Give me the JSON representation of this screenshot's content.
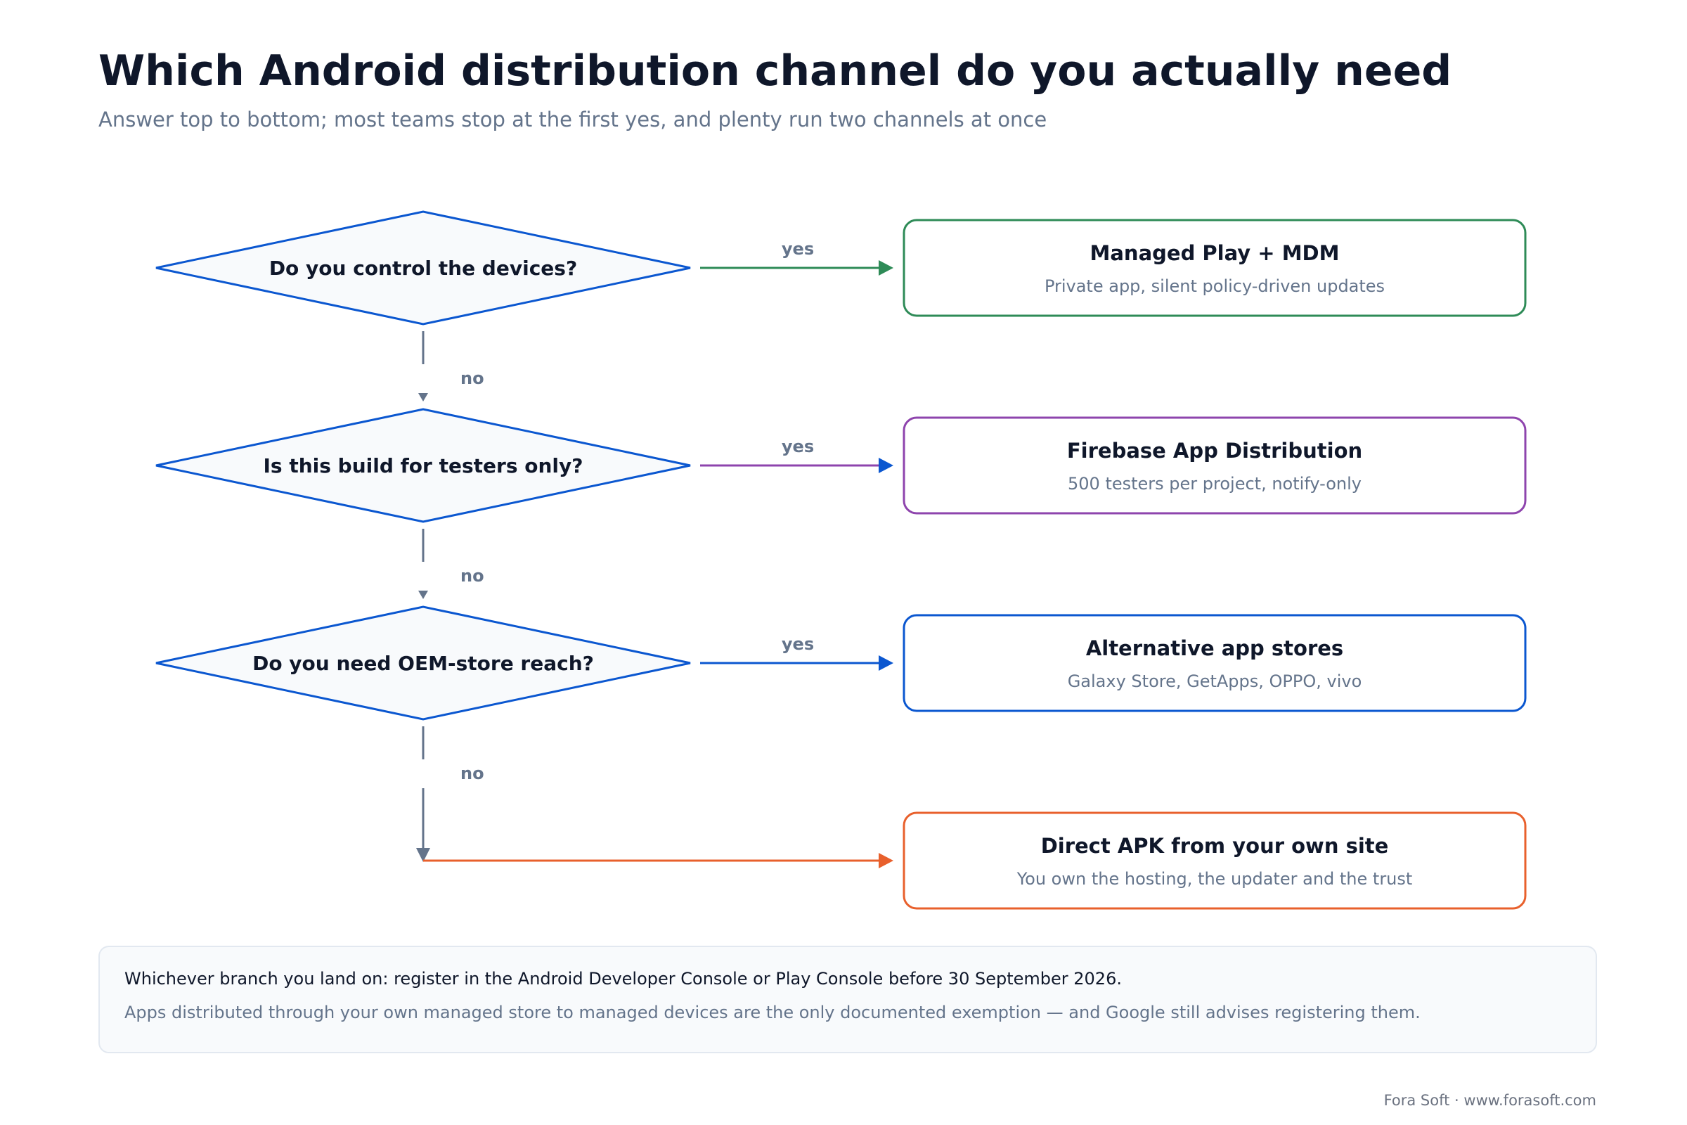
{
  "header": {
    "title": "Which Android distribution channel do you actually need",
    "subtitle": "Answer top to bottom; most teams stop at the first yes, and plenty run two channels at once"
  },
  "questions": [
    {
      "text": "Do you control the devices?",
      "yes_label": "yes",
      "no_label": "no"
    },
    {
      "text": "Is this build for testers only?",
      "yes_label": "yes",
      "no_label": "no"
    },
    {
      "text": "Do you need OEM-store reach?",
      "yes_label": "yes",
      "no_label": "no"
    }
  ],
  "outcomes": [
    {
      "title": "Managed Play + MDM",
      "subtitle": "Private app, silent policy-driven updates",
      "color": "#2e8b57"
    },
    {
      "title": "Firebase App Distribution",
      "subtitle": "500 testers per project, notify-only",
      "color": "#8e44ad"
    },
    {
      "title": "Alternative app stores",
      "subtitle": "Galaxy Store, GetApps, OPPO, vivo",
      "color": "#0b57d0"
    },
    {
      "title": "Direct APK from your own site",
      "subtitle": "You own the hosting, the updater and the trust",
      "color": "#e8602c"
    }
  ],
  "colors": {
    "question_border": "#0b57d0",
    "question_fill": "#f8fafc",
    "no_arrow": "#64748b",
    "yes_arrow_heads": [
      "#2e8b57",
      "#0b57d0",
      "#0b57d0"
    ],
    "note_border": "#e2e8f0",
    "note_fill": "#f8fafc"
  },
  "note": {
    "main": "Whichever branch you land on: register in the Android Developer Console or Play Console before 30 September 2026.",
    "sub": "Apps distributed through your own managed store to managed devices are the only documented exemption — and Google still advises registering them."
  },
  "footer": "Fora Soft · www.forasoft.com"
}
